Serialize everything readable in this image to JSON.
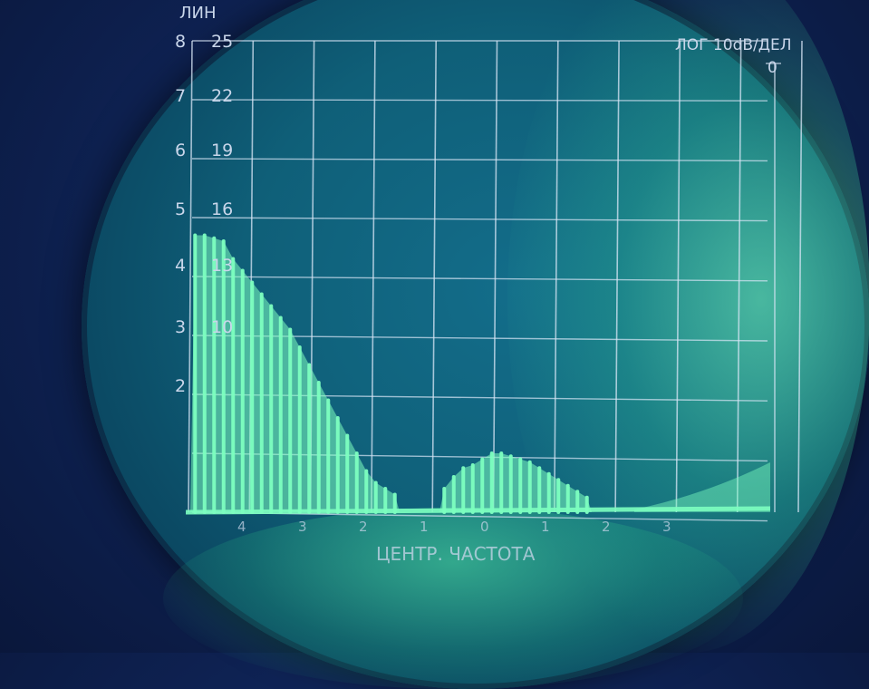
{
  "scope": {
    "lin_label": "ЛИН",
    "log_label": "ЛОГ 10dB/ДЕЛ",
    "log_zero": "0",
    "center_label": "ЦЕНТР. ЧАСТОТА",
    "lin_scale": [
      "8",
      "7",
      "6",
      "5",
      "4",
      "3",
      "2"
    ],
    "db_scale": [
      "25",
      "22",
      "19",
      "16",
      "13",
      "10"
    ],
    "x_ticks": [
      "4",
      "3",
      "2",
      "1",
      "0",
      "1",
      "2",
      "3"
    ]
  },
  "colors": {
    "trace": "#7dffc0",
    "grid": "#d8e6f6",
    "phosphor_bg": "#0f5f78",
    "surround": "#0f2457"
  },
  "trace_data": {
    "main_lobe_peaks": [
      4.7,
      4.7,
      4.65,
      4.6,
      4.3,
      4.1,
      3.9,
      3.7,
      3.5,
      3.3,
      3.1,
      2.8,
      2.5,
      2.2,
      1.9,
      1.6,
      1.3,
      1.0,
      0.7,
      0.5,
      0.4,
      0.3
    ],
    "side_lobe_peaks": [
      0.4,
      0.6,
      0.75,
      0.8,
      0.9,
      1.0,
      1.0,
      0.95,
      0.9,
      0.85,
      0.75,
      0.65,
      0.55,
      0.45,
      0.35,
      0.25
    ]
  }
}
